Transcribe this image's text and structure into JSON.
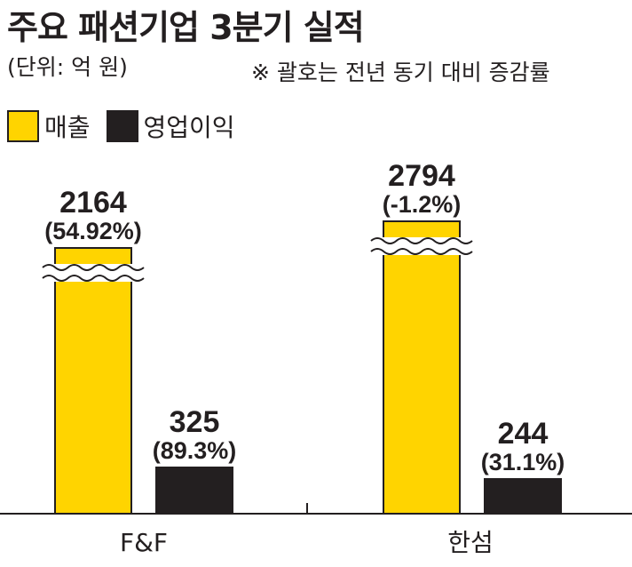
{
  "title": "주요 패션기업 3분기 실적",
  "unit": "(단위: 억 원)",
  "note": "※ 괄호는 전년 동기 대비 증감률",
  "colors": {
    "sales": "#ffd400",
    "operating_profit": "#231f20",
    "text": "#231f20"
  },
  "chart_data": {
    "type": "bar",
    "categories": [
      "F&F",
      "한섬"
    ],
    "series": [
      {
        "name": "매출",
        "values": [
          2164,
          2794
        ],
        "labels": [
          "(54.92%)",
          "(-1.2%)"
        ],
        "axis_break": true
      },
      {
        "name": "영업이익",
        "values": [
          325,
          244
        ],
        "labels": [
          "(89.3%)",
          "(31.1%)"
        ],
        "axis_break": false
      }
    ],
    "legend": "top-left",
    "grid": false
  }
}
